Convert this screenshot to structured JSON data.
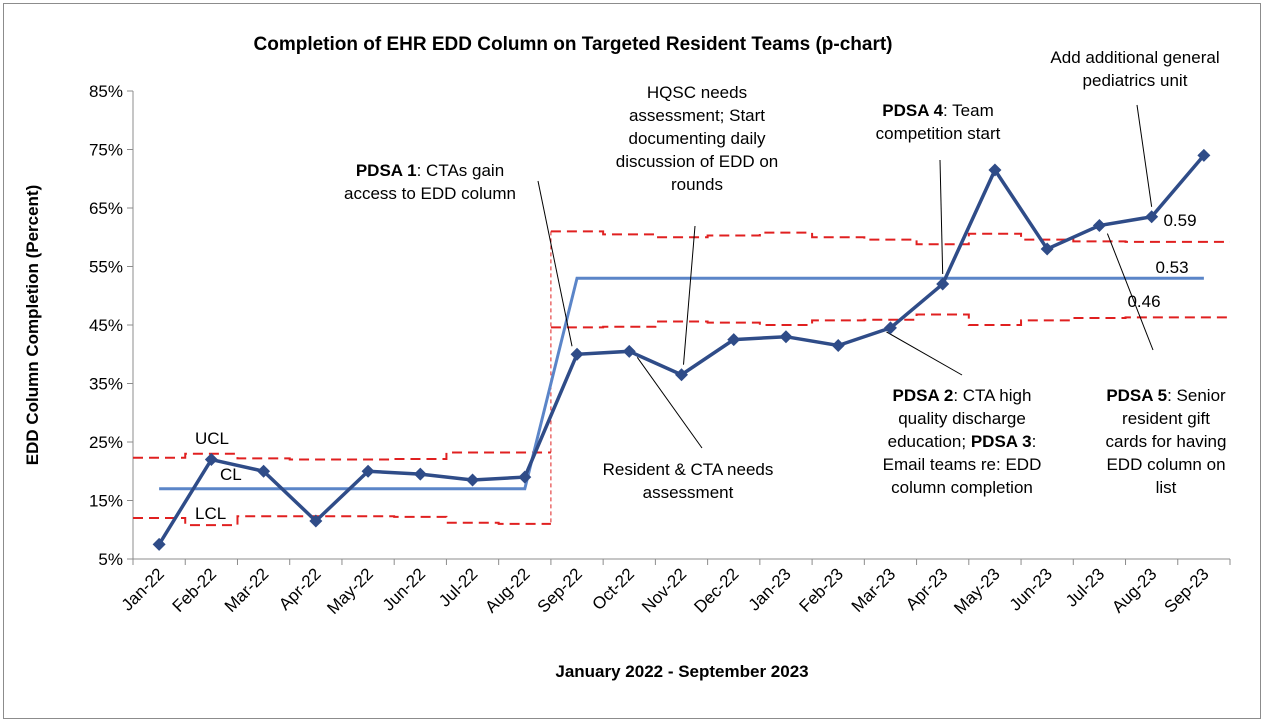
{
  "chart_data": {
    "type": "line",
    "title": "Completion of EHR EDD Column on Targeted Resident Teams (p-chart)",
    "xlabel": "January 2022 - September 2023",
    "ylabel": "EDD Column Completion (Percent)",
    "ylim": [
      5,
      85
    ],
    "yticks": [
      5,
      15,
      25,
      35,
      45,
      55,
      65,
      75,
      85
    ],
    "ytick_labels": [
      "5%",
      "15%",
      "25%",
      "35%",
      "45%",
      "55%",
      "65%",
      "75%",
      "85%"
    ],
    "categories": [
      "Jan-22",
      "Feb-22",
      "Mar-22",
      "Apr-22",
      "May-22",
      "Jun-22",
      "Jul-22",
      "Aug-22",
      "Sep-22",
      "Oct-22",
      "Nov-22",
      "Dec-22",
      "Jan-23",
      "Feb-23",
      "Mar-23",
      "Apr-23",
      "May-23",
      "Jun-23",
      "Jul-23",
      "Aug-23",
      "Sep-23"
    ],
    "grid": false,
    "series": [
      {
        "values": [
          7.5,
          22,
          20,
          11.5,
          20,
          19.5,
          18.5,
          19,
          40,
          40.5,
          36.5,
          42.5,
          43,
          41.5,
          44.5,
          52,
          71.5,
          58,
          62,
          63.5,
          74
        ],
        "color": "#2F4C88"
      }
    ],
    "center_line": {
      "segments": [
        {
          "from": 0,
          "to": 7,
          "value": 17
        },
        {
          "from": 8,
          "to": 20,
          "value": 53
        }
      ],
      "color": "#5B85C8"
    },
    "ucl": [
      22.3,
      23,
      22.2,
      22,
      22,
      22.1,
      23.2,
      23.2,
      61,
      60.5,
      60,
      60.3,
      60.8,
      60,
      59.6,
      58.8,
      60.6,
      59.6,
      59.3,
      59.2,
      59.2
    ],
    "lcl": [
      12,
      10.8,
      12.3,
      12.3,
      12.3,
      12.2,
      11.2,
      11,
      44.6,
      44.7,
      45.6,
      45.4,
      45,
      45.8,
      45.9,
      46.8,
      45,
      45.8,
      46.2,
      46.3,
      46.3
    ],
    "limit_color": "#E02020",
    "line_labels": {
      "ucl": "UCL",
      "cl": "CL",
      "lcl": "LCL",
      "ucl_value": "0.59",
      "cl_value": "0.53",
      "lcl_value": "0.46"
    },
    "annotations": [
      {
        "id": "pdsa1",
        "bold": "PDSA 1",
        "lines": [
          "PDSA 1: CTAs gain",
          "access to EDD column"
        ]
      },
      {
        "id": "hqsc",
        "lines": [
          "HQSC needs",
          "assessment; Start",
          "documenting daily",
          "discussion of EDD on",
          "rounds"
        ]
      },
      {
        "id": "pdsa4",
        "bold": "PDSA 4",
        "lines": [
          "PDSA 4: Team",
          "competition start"
        ]
      },
      {
        "id": "addunit",
        "lines": [
          "Add additional general",
          "pediatrics unit"
        ]
      },
      {
        "id": "resident",
        "lines": [
          "Resident & CTA needs",
          "assessment"
        ]
      },
      {
        "id": "pdsa23",
        "bold": "PDSA 2",
        "bold2": "PDSA 3",
        "lines": [
          "PDSA 2: CTA high",
          "quality discharge",
          "education; PDSA 3:",
          "Email teams re: EDD",
          "column completion"
        ]
      },
      {
        "id": "pdsa5",
        "bold": "PDSA 5",
        "lines": [
          "PDSA 5: Senior",
          "resident gift",
          "cards for having",
          "EDD column on",
          "list"
        ]
      }
    ]
  }
}
